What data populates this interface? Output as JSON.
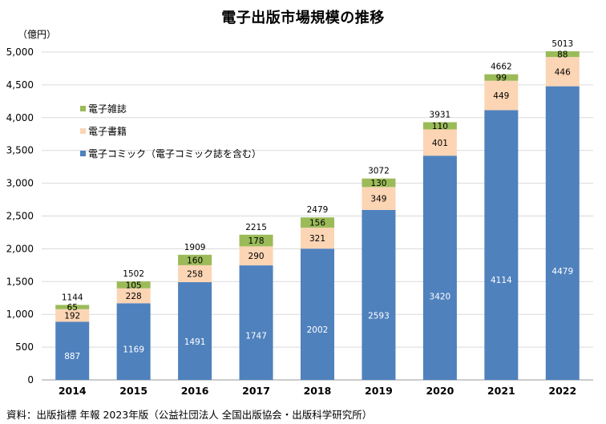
{
  "chart_data": {
    "type": "bar",
    "stacked": true,
    "title": "電子出版市場規模の推移",
    "unit": "（億円）",
    "categories": [
      "2014",
      "2015",
      "2016",
      "2017",
      "2018",
      "2019",
      "2020",
      "2021",
      "2022"
    ],
    "series": [
      {
        "name": "電子コミック（電子コミック誌を含む）",
        "color": "#4f81bd",
        "label_color": "#ffffff",
        "values": [
          887,
          1169,
          1491,
          1747,
          2002,
          2593,
          3420,
          4114,
          4479
        ]
      },
      {
        "name": "電子書籍",
        "color": "#fcd5b5",
        "label_color": "#000000",
        "values": [
          192,
          228,
          258,
          290,
          321,
          349,
          401,
          449,
          446
        ]
      },
      {
        "name": "電子雑誌",
        "color": "#9bbb59",
        "label_color": "#000000",
        "values": [
          65,
          105,
          160,
          178,
          156,
          130,
          110,
          99,
          88
        ]
      }
    ],
    "totals": [
      1144,
      1502,
      1909,
      2215,
      2479,
      3072,
      3931,
      4662,
      5013
    ],
    "ylim": [
      0,
      5000
    ],
    "yticks": [
      0,
      500,
      1000,
      1500,
      2000,
      2500,
      3000,
      3500,
      4000,
      4500,
      5000
    ],
    "ytick_labels": [
      "0",
      "500",
      "1,000",
      "1,500",
      "2,000",
      "2,500",
      "3,000",
      "3,500",
      "4,000",
      "4,500",
      "5,000"
    ],
    "grid": true,
    "legend_position": "top-left"
  },
  "source": "資料：出版指標 年報 2023年版（公益社団法人 全国出版協会・出版科学研究所）"
}
